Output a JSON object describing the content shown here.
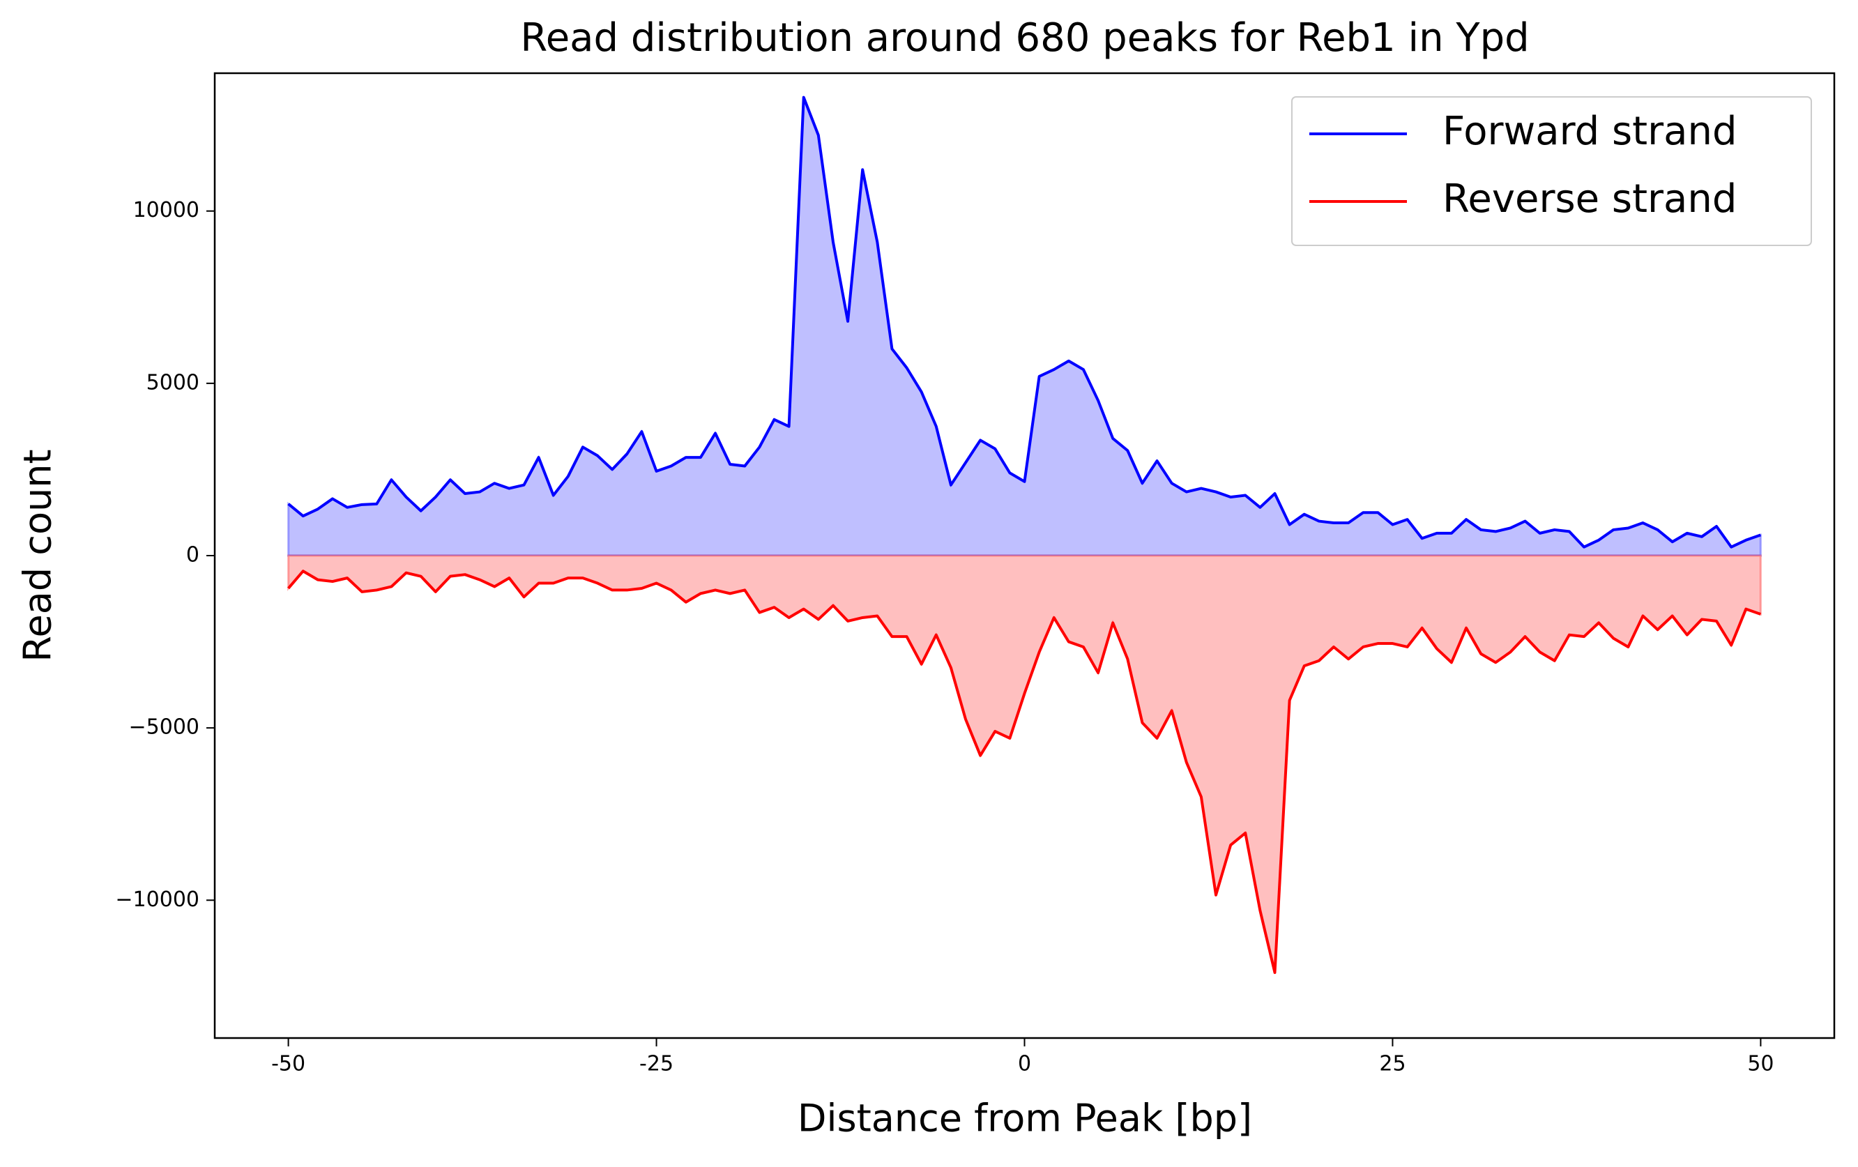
{
  "chart_data": {
    "type": "line",
    "title": "Read distribution around 680 peaks for Reb1 in Ypd",
    "x_label": "Distance from Peak [bp]",
    "y_label": "Read count",
    "x": [
      -50,
      -49,
      -48,
      -47,
      -46,
      -45,
      -44,
      -43,
      -42,
      -41,
      -40,
      -39,
      -38,
      -37,
      -36,
      -35,
      -34,
      -33,
      -32,
      -31,
      -30,
      -29,
      -28,
      -27,
      -26,
      -25,
      -24,
      -23,
      -22,
      -21,
      -20,
      -19,
      -18,
      -17,
      -16,
      -15,
      -14,
      -13,
      -12,
      -11,
      -10,
      -9,
      -8,
      -7,
      -6,
      -5,
      -4,
      -3,
      -2,
      -1,
      0,
      1,
      2,
      3,
      4,
      5,
      6,
      7,
      8,
      9,
      10,
      11,
      12,
      13,
      14,
      15,
      16,
      17,
      18,
      19,
      20,
      21,
      22,
      23,
      24,
      25,
      26,
      27,
      28,
      29,
      30,
      31,
      32,
      33,
      34,
      35,
      36,
      37,
      38,
      39,
      40,
      41,
      42,
      43,
      44,
      45,
      46,
      47,
      48,
      49,
      50
    ],
    "series": [
      {
        "name": "Forward strand",
        "color": "#0000ff",
        "fill_color": "#bfbfff",
        "values": [
          1500,
          1150,
          1350,
          1650,
          1400,
          1480,
          1500,
          2200,
          1700,
          1300,
          1700,
          2200,
          1800,
          1850,
          2100,
          1950,
          2050,
          2850,
          1750,
          2300,
          3150,
          2900,
          2500,
          2950,
          3600,
          2450,
          2600,
          2850,
          2850,
          3550,
          2650,
          2600,
          3150,
          3950,
          3750,
          13300,
          12200,
          9100,
          6800,
          11200,
          9100,
          6000,
          5450,
          4750,
          3750,
          2050,
          2700,
          3350,
          3100,
          2400,
          2150,
          5200,
          5400,
          5650,
          5400,
          4500,
          3400,
          3050,
          2100,
          2750,
          2100,
          1850,
          1950,
          1850,
          1700,
          1750,
          1400,
          1800,
          900,
          1200,
          1000,
          950,
          950,
          1250,
          1250,
          900,
          1050,
          500,
          650,
          650,
          1050,
          750,
          700,
          800,
          1000,
          650,
          750,
          700,
          250,
          450,
          750,
          800,
          950,
          750,
          400,
          650,
          550,
          850,
          250,
          450,
          600
        ]
      },
      {
        "name": "Reverse strand",
        "color": "#ff0000",
        "fill_color": "#ffbfbf",
        "values": [
          -950,
          -450,
          -700,
          -750,
          -650,
          -1050,
          -1000,
          -900,
          -500,
          -600,
          -1050,
          -600,
          -550,
          -700,
          -900,
          -650,
          -1200,
          -800,
          -800,
          -650,
          -650,
          -800,
          -1000,
          -1000,
          -950,
          -800,
          -1000,
          -1350,
          -1100,
          -1000,
          -1100,
          -1000,
          -1650,
          -1500,
          -1800,
          -1550,
          -1850,
          -1450,
          -1900,
          -1800,
          -1750,
          -2350,
          -2350,
          -3150,
          -2300,
          -3250,
          -4750,
          -5800,
          -5100,
          -5300,
          -4000,
          -2800,
          -1800,
          -2500,
          -2650,
          -3400,
          -1950,
          -3000,
          -4850,
          -5300,
          -4500,
          -6000,
          -7000,
          -9850,
          -8400,
          -8050,
          -10300,
          -12100,
          -4200,
          -3200,
          -3050,
          -2650,
          -3000,
          -2650,
          -2550,
          -2550,
          -2650,
          -2100,
          -2700,
          -3100,
          -2100,
          -2850,
          -3100,
          -2800,
          -2350,
          -2800,
          -3050,
          -2300,
          -2350,
          -1950,
          -2400,
          -2650,
          -1750,
          -2150,
          -1750,
          -2300,
          -1850,
          -1900,
          -2600,
          -1550,
          -1700
        ]
      }
    ],
    "xlim": [
      -55,
      55
    ],
    "xticks": [
      -50,
      -25,
      0,
      25,
      50
    ],
    "ylim": [
      -14000,
      14000
    ],
    "yticks": [
      {
        "value": -10000,
        "label": "−10000"
      },
      {
        "value": -5000,
        "label": "−5000"
      },
      0,
      5000,
      10000
    ],
    "grid": false,
    "legend": "upper right"
  }
}
